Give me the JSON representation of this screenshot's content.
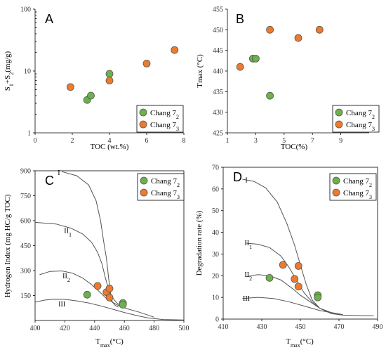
{
  "styles": {
    "green": "#6bb24a",
    "orange": "#ee7a2e",
    "point_stroke": "#555555"
  },
  "chart_data": [
    {
      "panel": "A",
      "type": "scatter",
      "xlabel": "TOC (wt.%)",
      "ylabel": "S1+S2(mg/g)",
      "xlim": [
        0,
        8
      ],
      "ylim": [
        1,
        100
      ],
      "yscale": "log",
      "xticks": [
        0,
        2,
        4,
        6,
        8
      ],
      "yticks": [
        1,
        10,
        100
      ],
      "legend_position": "bottom-right",
      "series": [
        {
          "name": "Chang 72",
          "color": "green",
          "points": [
            [
              2.8,
              3.4
            ],
            [
              3.0,
              4.0
            ],
            [
              4.0,
              9.0
            ]
          ]
        },
        {
          "name": "Chang 73",
          "color": "orange",
          "points": [
            [
              1.9,
              5.5
            ],
            [
              4.0,
              7.0
            ],
            [
              6.0,
              13.2
            ],
            [
              7.5,
              21.8
            ]
          ]
        }
      ]
    },
    {
      "panel": "B",
      "type": "scatter",
      "xlabel": "TOC(%)",
      "ylabel": "Tmax (°C)",
      "xlim": [
        1,
        11
      ],
      "ylim": [
        425,
        455
      ],
      "xticks": [
        1,
        3,
        5,
        7,
        9
      ],
      "yticks": [
        425,
        430,
        435,
        440,
        445,
        450,
        455
      ],
      "legend_position": "bottom-right",
      "series": [
        {
          "name": "Chang 72",
          "color": "green",
          "points": [
            [
              2.8,
              443
            ],
            [
              3.0,
              443
            ],
            [
              4.0,
              434
            ]
          ]
        },
        {
          "name": "Chang 73",
          "color": "orange",
          "points": [
            [
              1.9,
              441
            ],
            [
              4.0,
              450
            ],
            [
              6.0,
              448
            ],
            [
              7.5,
              450
            ]
          ]
        }
      ]
    },
    {
      "panel": "C",
      "type": "scatter",
      "xlabel": "Tmax(°C)",
      "ylabel": "Hydrogen Index (mg HC/g TOC)",
      "xlim": [
        400,
        500
      ],
      "ylim": [
        0,
        900
      ],
      "xticks": [
        400,
        420,
        440,
        460,
        480,
        500
      ],
      "yticks": [
        150,
        300,
        450,
        600,
        750,
        900
      ],
      "legend_position": "top-right",
      "curve_labels": [
        "I",
        "II1",
        "II2",
        "III"
      ],
      "series": [
        {
          "name": "Chang 72",
          "color": "green",
          "points": [
            [
              435,
              155
            ],
            [
              459,
              105
            ],
            [
              459,
              95
            ]
          ]
        },
        {
          "name": "Chang 73",
          "color": "orange",
          "points": [
            [
              442,
              208
            ],
            [
              448,
              170
            ],
            [
              450,
              192
            ],
            [
              450,
              138
            ]
          ]
        }
      ]
    },
    {
      "panel": "D",
      "type": "scatter",
      "xlabel": "Tmax(°C)",
      "ylabel": "Degradation rate (%)",
      "xlim": [
        410,
        490
      ],
      "ylim": [
        0,
        70
      ],
      "xticks": [
        410,
        430,
        450,
        470,
        490
      ],
      "yticks": [
        0,
        10,
        20,
        30,
        40,
        50,
        60,
        70
      ],
      "legend_position": "top-right",
      "curve_labels": [
        "I",
        "II1",
        "II2",
        "III"
      ],
      "series": [
        {
          "name": "Chang 72",
          "color": "green",
          "points": [
            [
              434,
              19
            ],
            [
              459,
              11
            ],
            [
              459,
              10
            ]
          ]
        },
        {
          "name": "Chang 73",
          "color": "orange",
          "points": [
            [
              441,
              25
            ],
            [
              447,
              18.5
            ],
            [
              449,
              15
            ],
            [
              449,
              24.5
            ]
          ]
        }
      ]
    }
  ]
}
